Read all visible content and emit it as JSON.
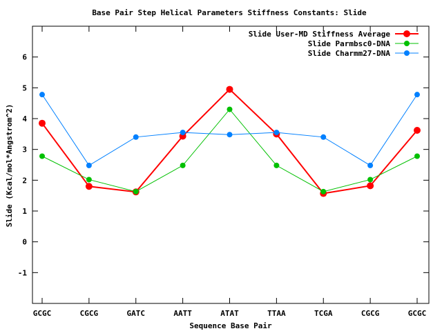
{
  "chart_data": {
    "type": "line",
    "title": "Base Pair Step Helical Parameters Stiffness Constants: Slide",
    "xlabel": "Sequence Base Pair",
    "ylabel": "Slide (Kcal/mol*Angstrom^2)",
    "categories": [
      "GCGC",
      "CGCG",
      "GATC",
      "AATT",
      "ATAT",
      "TTAA",
      "TCGA",
      "CGCG",
      "GCGC"
    ],
    "ylim": [
      -2,
      7
    ],
    "yticks": [
      "-1",
      "0",
      "1",
      "2",
      "3",
      "4",
      "5",
      "6"
    ],
    "legend_position": "top-right",
    "grid": false,
    "series": [
      {
        "name": "Slide User-MD Stiffness Average",
        "color": "#ff0000",
        "values": [
          3.85,
          1.8,
          1.62,
          3.43,
          4.95,
          3.5,
          1.57,
          1.82,
          3.62
        ]
      },
      {
        "name": "Slide Parmbsc0-DNA",
        "color": "#00c000",
        "values": [
          2.78,
          2.02,
          1.63,
          2.48,
          4.3,
          2.48,
          1.63,
          2.02,
          2.78
        ]
      },
      {
        "name": "Slide Charmm27-DNA",
        "color": "#0080ff",
        "values": [
          4.78,
          2.48,
          3.4,
          3.55,
          3.48,
          3.55,
          3.4,
          2.48,
          4.78
        ]
      }
    ]
  }
}
